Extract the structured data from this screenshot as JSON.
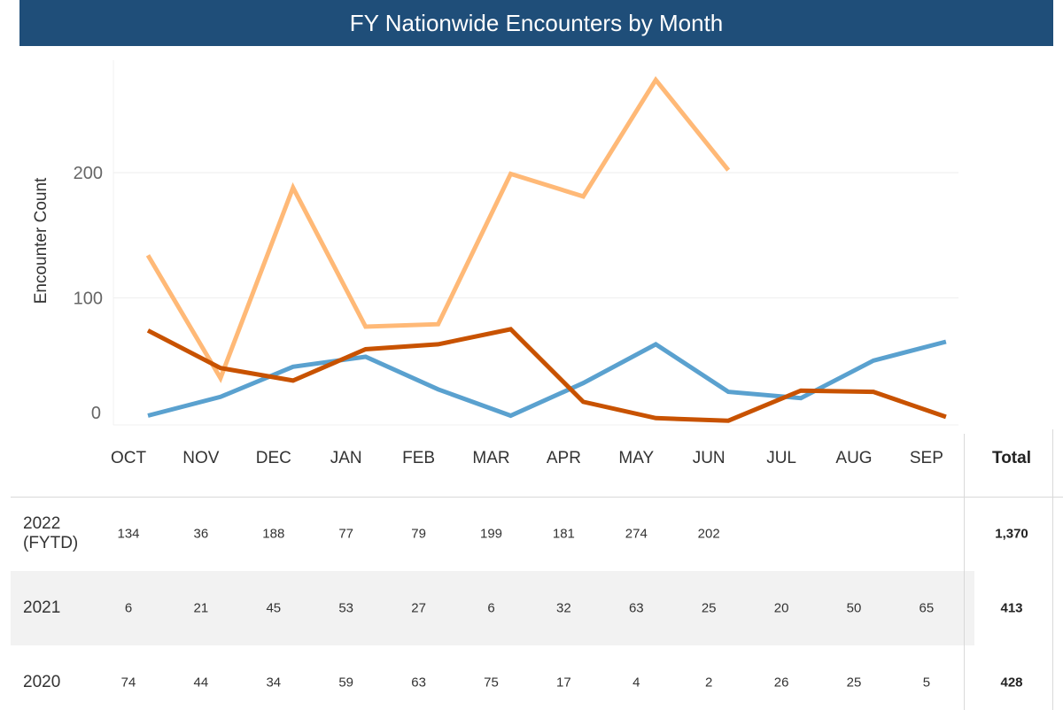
{
  "title": "FY Nationwide Encounters by Month",
  "chart_data": {
    "type": "line",
    "ylabel": "Encounter Count",
    "ylim": [
      0,
      300
    ],
    "yticks": [
      0,
      100,
      200
    ],
    "grid": true,
    "categories": [
      "OCT",
      "NOV",
      "DEC",
      "JAN",
      "FEB",
      "MAR",
      "APR",
      "MAY",
      "JUN",
      "JUL",
      "AUG",
      "SEP"
    ],
    "series": [
      {
        "name": "2022 (FYTD)",
        "color": "#ffb977",
        "values": [
          134,
          36,
          188,
          77,
          79,
          199,
          181,
          274,
          202,
          null,
          null,
          null
        ]
      },
      {
        "name": "2021",
        "color": "#5aa1cf",
        "values": [
          6,
          21,
          45,
          53,
          27,
          6,
          32,
          63,
          25,
          20,
          50,
          65
        ]
      },
      {
        "name": "2020",
        "color": "#c85200",
        "values": [
          74,
          44,
          34,
          59,
          63,
          75,
          17,
          4,
          2,
          26,
          25,
          5
        ]
      }
    ]
  },
  "table": {
    "total_label": "Total",
    "rows": [
      {
        "label_line1": "2022",
        "label_line2": "(FYTD)",
        "cells": [
          "134",
          "36",
          "188",
          "77",
          "79",
          "199",
          "181",
          "274",
          "202",
          "",
          "",
          ""
        ],
        "total": "1,370"
      },
      {
        "label_line1": "2021",
        "label_line2": "",
        "cells": [
          "6",
          "21",
          "45",
          "53",
          "27",
          "6",
          "32",
          "63",
          "25",
          "20",
          "50",
          "65"
        ],
        "total": "413"
      },
      {
        "label_line1": "2020",
        "label_line2": "",
        "cells": [
          "74",
          "44",
          "34",
          "59",
          "63",
          "75",
          "17",
          "4",
          "2",
          "26",
          "25",
          "5"
        ],
        "total": "428"
      }
    ]
  }
}
